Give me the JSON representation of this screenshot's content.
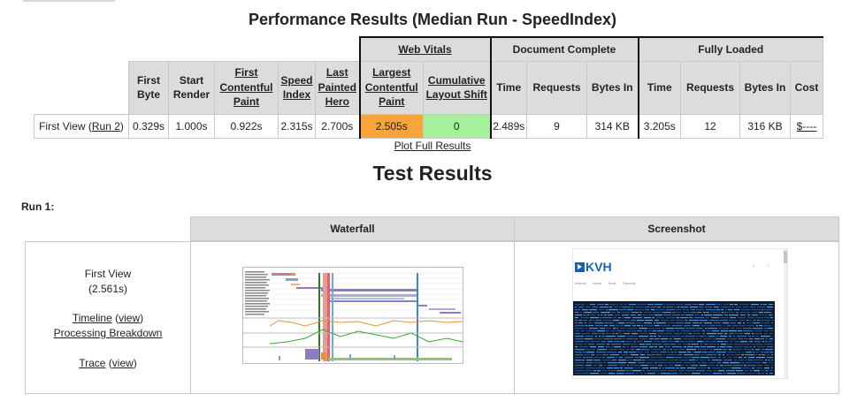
{
  "page": {
    "title": "Performance Results (Median Run - SpeedIndex)",
    "plot_link": "Plot Full Results",
    "test_results_title": "Test Results"
  },
  "perf_table": {
    "groups": {
      "web_vitals": "Web Vitals",
      "document_complete": "Document Complete",
      "fully_loaded": "Fully Loaded"
    },
    "headers": {
      "first_byte": "First Byte",
      "start_render": "Start Render",
      "fcp": "First Contentful Paint",
      "speed_index": "Speed Index",
      "last_painted_hero": "Last Painted Hero",
      "lcp": "Largest Contentful Paint",
      "cls": "Cumulative Layout Shift",
      "dc_time": "Time",
      "dc_requests": "Requests",
      "dc_bytes": "Bytes In",
      "fl_time": "Time",
      "fl_requests": "Requests",
      "fl_bytes": "Bytes In",
      "cost": "Cost"
    },
    "row": {
      "label": "First View (",
      "run_link": "Run 2",
      "label_close": ")",
      "first_byte": "0.329s",
      "start_render": "1.000s",
      "fcp": "0.922s",
      "speed_index": "2.315s",
      "last_painted_hero": "2.700s",
      "lcp": "2.505s",
      "cls": "0",
      "dc_time": "2.489s",
      "dc_requests": "9",
      "dc_bytes": "314 KB",
      "fl_time": "3.205s",
      "fl_requests": "12",
      "fl_bytes": "316 KB",
      "cost": "$----"
    },
    "colors": {
      "lcp": "#f7a43b",
      "cls": "#a4f39a"
    }
  },
  "run": {
    "label": "Run 1:",
    "columns": {
      "waterfall": "Waterfall",
      "screenshot": "Screenshot"
    },
    "first_view": {
      "title": "First View",
      "time": "(2.561s)",
      "timeline": "Timeline",
      "timeline_view": "view",
      "processing": "Processing Breakdown",
      "trace": "Trace",
      "trace_view": "view"
    },
    "screenshot": {
      "logo": "KVH",
      "nav": [
        "Articles",
        "News",
        "Tools",
        "Tutorials"
      ]
    }
  }
}
